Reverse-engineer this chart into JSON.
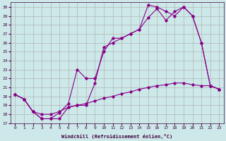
{
  "xlabel": "Windchill (Refroidissement éolien,°C)",
  "xlim": [
    -0.5,
    23.5
  ],
  "ylim": [
    17,
    30.5
  ],
  "xticks": [
    0,
    1,
    2,
    3,
    4,
    5,
    6,
    7,
    8,
    9,
    10,
    11,
    12,
    13,
    14,
    15,
    16,
    17,
    18,
    19,
    20,
    21,
    22,
    23
  ],
  "yticks": [
    17,
    18,
    19,
    20,
    21,
    22,
    23,
    24,
    25,
    26,
    27,
    28,
    29,
    30
  ],
  "bg_color": "#cce8e8",
  "grid_color": "#aaaaaa",
  "line_color": "#880088",
  "line1_x": [
    0,
    1,
    2,
    3,
    4,
    5,
    6,
    7,
    8,
    9,
    10,
    11,
    12,
    13,
    14,
    15,
    16,
    17,
    18,
    19,
    20,
    21,
    22,
    23
  ],
  "line1_y": [
    20.2,
    19.7,
    18.3,
    17.5,
    17.5,
    18.2,
    19.2,
    23.0,
    22.0,
    22.0,
    25.0,
    26.5,
    26.5,
    27.0,
    27.5,
    30.2,
    30.0,
    29.5,
    29.0,
    30.0,
    29.0,
    26.0,
    21.2,
    20.8
  ],
  "line2_x": [
    0,
    1,
    2,
    3,
    4,
    5,
    6,
    7,
    8,
    9,
    10,
    11,
    12,
    13,
    14,
    15,
    16,
    17,
    18,
    19,
    20,
    21,
    22,
    23
  ],
  "line2_y": [
    20.2,
    19.7,
    18.3,
    17.5,
    17.5,
    17.5,
    18.8,
    19.0,
    19.0,
    21.5,
    25.5,
    26.0,
    26.5,
    27.0,
    27.5,
    28.8,
    29.8,
    28.5,
    29.5,
    30.0,
    29.0,
    26.0,
    21.2,
    20.8
  ],
  "line3_x": [
    0,
    1,
    2,
    3,
    4,
    5,
    6,
    7,
    8,
    9,
    10,
    11,
    12,
    13,
    14,
    15,
    16,
    17,
    18,
    19,
    20,
    21,
    22,
    23
  ],
  "line3_y": [
    20.2,
    19.7,
    18.3,
    18.0,
    18.0,
    18.3,
    18.8,
    19.0,
    19.2,
    19.5,
    19.8,
    20.0,
    20.3,
    20.5,
    20.8,
    21.0,
    21.2,
    21.3,
    21.5,
    21.5,
    21.3,
    21.2,
    21.2,
    20.8
  ]
}
